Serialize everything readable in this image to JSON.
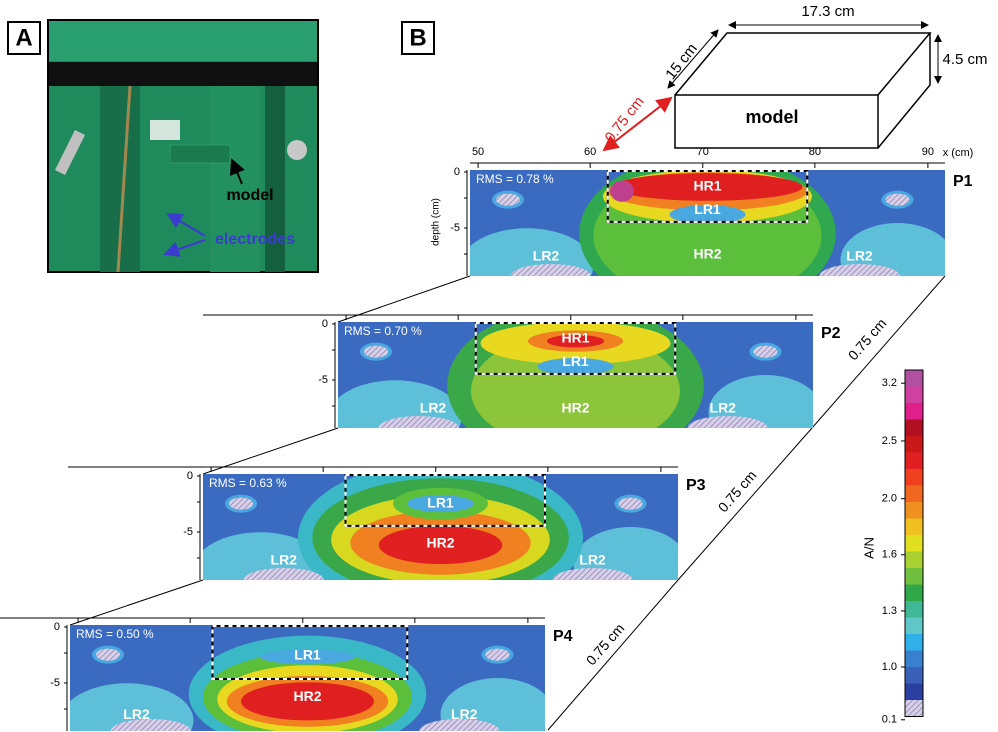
{
  "panel_a": {
    "label": "A",
    "annotations": [
      "model",
      "electrodes"
    ]
  },
  "panel_b": {
    "label": "B",
    "box": {
      "length": "17.3 cm",
      "width": "15 cm",
      "height": "4.5 cm",
      "label": "model",
      "offset": "0.75 cm"
    },
    "x_axis": {
      "ticks": [
        "50",
        "60",
        "70",
        "80",
        "90"
      ],
      "label": "x (cm)"
    },
    "depth_label": "depth (cm)",
    "profiles": [
      {
        "name": "P1",
        "rms": "RMS = 0.78 %",
        "depth_ticks": [
          "0",
          "-5"
        ],
        "zones": [
          "HR1",
          "LR1",
          "HR2",
          "LR2",
          "LR2"
        ]
      },
      {
        "name": "P2",
        "rms": "RMS = 0.70 %",
        "depth_ticks": [
          "0",
          "-5"
        ],
        "zones": [
          "HR1",
          "LR1",
          "HR2",
          "LR2",
          "LR2"
        ]
      },
      {
        "name": "P3",
        "rms": "RMS = 0.63 %",
        "depth_ticks": [
          "0",
          "-5"
        ],
        "zones": [
          "LR1",
          "HR2",
          "LR2",
          "LR2"
        ]
      },
      {
        "name": "P4",
        "rms": "RMS = 0.50 %",
        "depth_ticks": [
          "0",
          "-5"
        ],
        "zones": [
          "LR1",
          "HR2",
          "LR2",
          "LR2"
        ]
      }
    ],
    "spacings": [
      "0.75 cm",
      "0.75 cm",
      "0.75 cm"
    ],
    "colorbar": {
      "label": "A/N",
      "ticks": [
        "3.2",
        "2.5",
        "2.0",
        "1.6",
        "1.3",
        "1.0",
        "0.1"
      ]
    }
  }
}
